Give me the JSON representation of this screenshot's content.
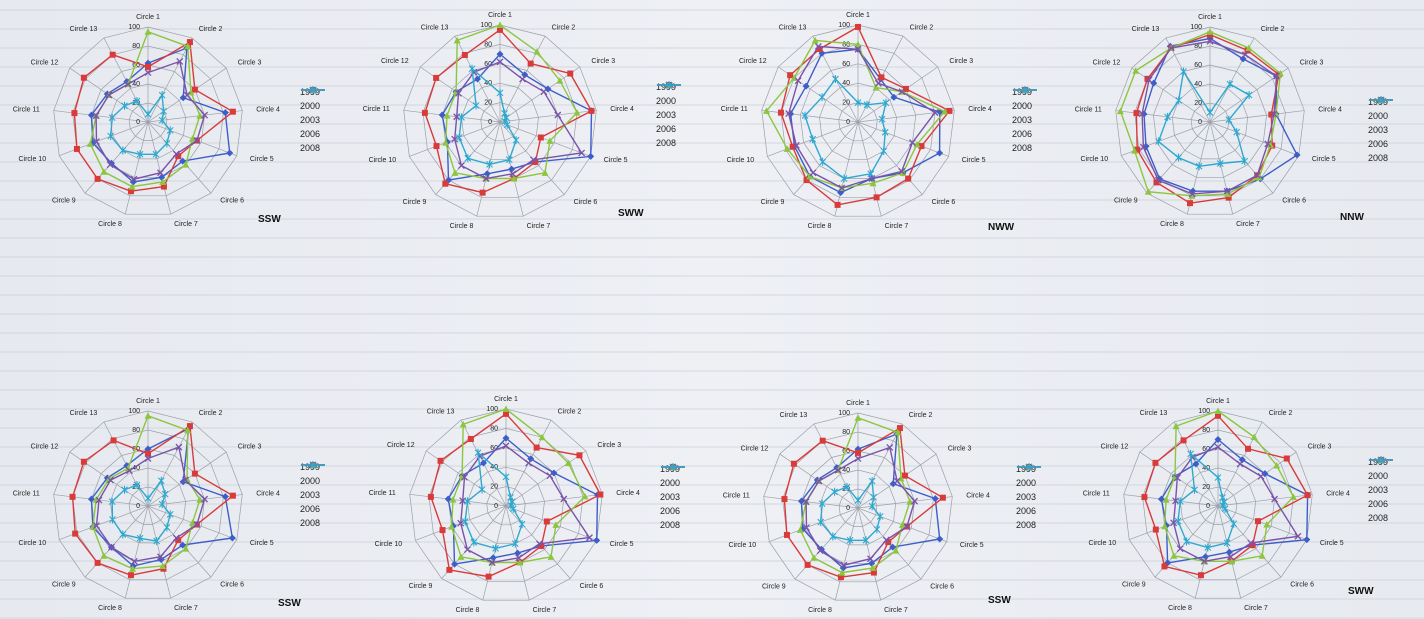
{
  "spokes": [
    "Circle 1",
    "Circle 2",
    "Circle 3",
    "Circle 4",
    "Circle 5",
    "Circle 6",
    "Circle 7",
    "Circle 8",
    "Circle 9",
    "Circle 10",
    "Circle 11",
    "Circle 12",
    "Circle 13"
  ],
  "rings": [
    "0",
    "20",
    "40",
    "60",
    "80",
    "100"
  ],
  "years": [
    "1999",
    "2000",
    "2003",
    "2006",
    "2008"
  ],
  "colors": {
    "1999": "#3d5ec9",
    "2000": "#d93a3a",
    "2003": "#8cc63f",
    "2006": "#7a53a8",
    "2008": "#2fa8d0"
  },
  "chart_data": [
    {
      "type": "radar",
      "direction": "SSW",
      "legend": "right",
      "ylim": [
        0,
        100
      ],
      "series": [
        {
          "name": "1999",
          "values": [
            62,
            88,
            45,
            82,
            92,
            55,
            60,
            65,
            58,
            62,
            60,
            52,
            48
          ]
        },
        {
          "name": "2000",
          "values": [
            58,
            95,
            60,
            90,
            55,
            48,
            70,
            75,
            80,
            80,
            78,
            82,
            80
          ]
        },
        {
          "name": "2003",
          "values": [
            95,
            90,
            55,
            55,
            50,
            60,
            65,
            70,
            70,
            65,
            55,
            50,
            45
          ]
        },
        {
          "name": "2006",
          "values": [
            52,
            72,
            50,
            60,
            55,
            45,
            55,
            62,
            60,
            58,
            55,
            50,
            45
          ]
        },
        {
          "name": "2008",
          "values": [
            8,
            32,
            20,
            15,
            25,
            30,
            35,
            35,
            40,
            42,
            38,
            30,
            25
          ]
        }
      ]
    },
    {
      "type": "radar",
      "direction": "SWW",
      "legend": "right",
      "ylim": [
        0,
        100
      ],
      "series": [
        {
          "name": "1999",
          "values": [
            70,
            55,
            60,
            95,
            100,
            55,
            50,
            55,
            80,
            58,
            60,
            55,
            50
          ]
        },
        {
          "name": "2000",
          "values": [
            95,
            68,
            88,
            95,
            45,
            55,
            60,
            75,
            85,
            70,
            78,
            80,
            78
          ]
        },
        {
          "name": "2003",
          "values": [
            100,
            82,
            75,
            80,
            55,
            70,
            60,
            60,
            70,
            60,
            55,
            55,
            95
          ]
        },
        {
          "name": "2006",
          "values": [
            62,
            50,
            55,
            60,
            90,
            52,
            55,
            60,
            60,
            50,
            45,
            52,
            58
          ]
        },
        {
          "name": "2008",
          "values": [
            30,
            10,
            8,
            5,
            8,
            25,
            40,
            45,
            50,
            45,
            40,
            30,
            62
          ]
        }
      ]
    },
    {
      "type": "radar",
      "direction": "NWW",
      "legend": "right",
      "ylim": [
        0,
        100
      ],
      "series": [
        {
          "name": "1999",
          "values": [
            75,
            50,
            45,
            85,
            90,
            70,
            60,
            75,
            75,
            70,
            70,
            65,
            80
          ]
        },
        {
          "name": "2000",
          "values": [
            98,
            52,
            60,
            95,
            70,
            78,
            80,
            88,
            80,
            72,
            80,
            85,
            85
          ]
        },
        {
          "name": "2003",
          "values": [
            80,
            40,
            55,
            90,
            65,
            70,
            65,
            70,
            75,
            78,
            95,
            80,
            95
          ]
        },
        {
          "name": "2006",
          "values": [
            75,
            45,
            55,
            80,
            60,
            68,
            60,
            70,
            70,
            68,
            72,
            75,
            88
          ]
        },
        {
          "name": "2008",
          "values": [
            20,
            20,
            35,
            25,
            30,
            40,
            55,
            60,
            55,
            50,
            55,
            45,
            50
          ]
        }
      ]
    },
    {
      "type": "radar",
      "direction": "NNW",
      "legend": "right",
      "ylim": [
        0,
        100
      ],
      "series": [
        {
          "name": "1999",
          "values": [
            88,
            75,
            85,
            70,
            98,
            80,
            75,
            75,
            80,
            72,
            70,
            72,
            90
          ]
        },
        {
          "name": "2000",
          "values": [
            92,
            85,
            88,
            65,
            70,
            75,
            82,
            88,
            85,
            82,
            78,
            80,
            88
          ]
        },
        {
          "name": "2003",
          "values": [
            95,
            88,
            90,
            70,
            68,
            78,
            78,
            80,
            98,
            85,
            95,
            95,
            88
          ]
        },
        {
          "name": "2006",
          "values": [
            85,
            80,
            85,
            68,
            65,
            75,
            75,
            78,
            82,
            75,
            72,
            78,
            88
          ]
        },
        {
          "name": "2008",
          "values": [
            10,
            45,
            50,
            20,
            30,
            55,
            45,
            48,
            50,
            58,
            45,
            40,
            60
          ]
        }
      ]
    },
    {
      "type": "radar",
      "direction": "SSW",
      "legend": "right",
      "ylim": [
        0,
        100
      ],
      "series": [
        {
          "name": "1999",
          "values": [
            60,
            92,
            45,
            82,
            95,
            55,
            58,
            65,
            58,
            62,
            60,
            52,
            48
          ]
        },
        {
          "name": "2000",
          "values": [
            55,
            95,
            60,
            90,
            55,
            48,
            68,
            75,
            80,
            82,
            80,
            82,
            78
          ]
        },
        {
          "name": "2003",
          "values": [
            95,
            90,
            50,
            55,
            50,
            60,
            65,
            68,
            70,
            62,
            55,
            50,
            45
          ]
        },
        {
          "name": "2006",
          "values": [
            50,
            70,
            48,
            60,
            55,
            45,
            55,
            60,
            58,
            58,
            52,
            48,
            42
          ]
        },
        {
          "name": "2008",
          "values": [
            8,
            30,
            22,
            15,
            25,
            30,
            38,
            35,
            40,
            40,
            38,
            30,
            25
          ]
        }
      ]
    },
    {
      "type": "radar",
      "direction": "",
      "legend": "right",
      "ylim": [
        0,
        100
      ],
      "series": [
        {
          "name": "1999",
          "values": [
            70,
            55,
            60,
            95,
            100,
            55,
            50,
            55,
            80,
            58,
            60,
            55,
            50
          ]
        },
        {
          "name": "2000",
          "values": [
            95,
            68,
            92,
            98,
            45,
            55,
            60,
            75,
            88,
            70,
            78,
            82,
            78
          ]
        },
        {
          "name": "2003",
          "values": [
            100,
            80,
            78,
            82,
            55,
            70,
            60,
            60,
            70,
            60,
            55,
            55,
            95
          ]
        },
        {
          "name": "2006",
          "values": [
            62,
            50,
            55,
            60,
            92,
            52,
            55,
            60,
            60,
            50,
            45,
            52,
            58
          ]
        },
        {
          "name": "2008",
          "values": [
            30,
            10,
            8,
            5,
            8,
            25,
            40,
            45,
            50,
            45,
            40,
            30,
            62
          ]
        }
      ]
    },
    {
      "type": "radar",
      "direction": "SSW",
      "legend": "right",
      "ylim": [
        0,
        100
      ],
      "series": [
        {
          "name": "1999",
          "values": [
            62,
            88,
            45,
            82,
            92,
            55,
            60,
            65,
            58,
            62,
            60,
            52,
            48
          ]
        },
        {
          "name": "2000",
          "values": [
            58,
            95,
            60,
            90,
            55,
            48,
            70,
            75,
            80,
            80,
            78,
            82,
            80
          ]
        },
        {
          "name": "2003",
          "values": [
            95,
            90,
            55,
            55,
            50,
            60,
            65,
            70,
            70,
            65,
            55,
            50,
            45
          ]
        },
        {
          "name": "2006",
          "values": [
            52,
            72,
            50,
            60,
            55,
            45,
            55,
            62,
            60,
            58,
            55,
            50,
            45
          ]
        },
        {
          "name": "2008",
          "values": [
            8,
            32,
            20,
            15,
            25,
            30,
            35,
            35,
            40,
            42,
            38,
            30,
            25
          ]
        }
      ]
    },
    {
      "type": "radar",
      "direction": "SWW",
      "legend": "right",
      "ylim": [
        0,
        100
      ],
      "series": [
        {
          "name": "1999",
          "values": [
            70,
            55,
            60,
            95,
            100,
            55,
            50,
            55,
            80,
            58,
            60,
            55,
            50
          ]
        },
        {
          "name": "2000",
          "values": [
            95,
            68,
            88,
            95,
            45,
            55,
            60,
            75,
            85,
            70,
            78,
            80,
            78
          ]
        },
        {
          "name": "2003",
          "values": [
            100,
            82,
            75,
            80,
            55,
            70,
            60,
            60,
            70,
            60,
            55,
            55,
            95
          ]
        },
        {
          "name": "2006",
          "values": [
            62,
            50,
            55,
            60,
            90,
            52,
            55,
            60,
            60,
            50,
            45,
            52,
            58
          ]
        },
        {
          "name": "2008",
          "values": [
            30,
            10,
            8,
            5,
            8,
            25,
            40,
            45,
            50,
            45,
            40,
            30,
            62
          ]
        }
      ]
    }
  ]
}
